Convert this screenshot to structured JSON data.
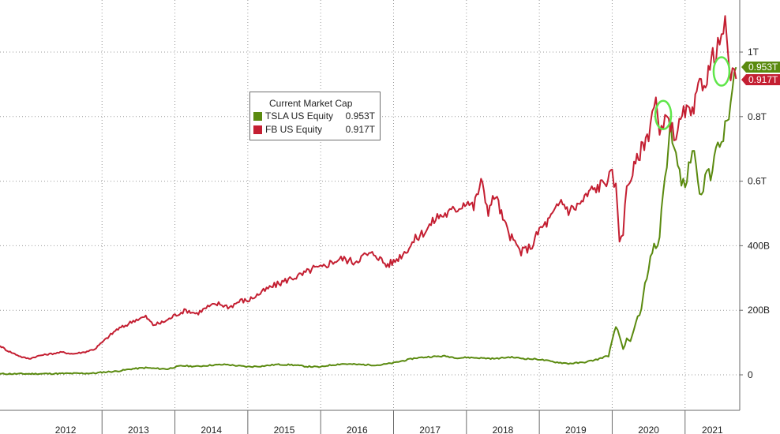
{
  "chart_data": {
    "type": "line",
    "title": "",
    "xlabel": "",
    "ylabel": "",
    "x_tick_labels": [
      "2012",
      "2013",
      "2014",
      "2015",
      "2016",
      "2017",
      "2018",
      "2019",
      "2020",
      "2021"
    ],
    "y_tick_labels": [
      "0",
      "200B",
      "400B",
      "0.6T",
      "0.8T",
      "1T"
    ],
    "y_tick_values": [
      0,
      200,
      400,
      600,
      800,
      1000
    ],
    "ylim": [
      -100,
      1160
    ],
    "xlim": [
      2011.6,
      2021.75
    ],
    "grid": true,
    "y_axis_side": "right",
    "legend": {
      "title": "Current Market Cap",
      "placement": "upper-center",
      "entries": [
        {
          "name": "TSLA US Equity",
          "value": "0.953T",
          "color": "#5a8a0f"
        },
        {
          "name": "FB US Equity",
          "value": "0.917T",
          "color": "#c41f32"
        }
      ]
    },
    "last_value_tags": [
      {
        "series": "TSLA US Equity",
        "text": "0.953T",
        "value": 953,
        "color": "#5a8a0f"
      },
      {
        "series": "FB US Equity",
        "text": "0.917T",
        "value": 917,
        "color": "#c41f32"
      }
    ],
    "highlight_circles": [
      {
        "x": 2020.7,
        "y": 805
      },
      {
        "x": 2021.5,
        "y": 940
      }
    ],
    "series": [
      {
        "name": "TSLA US Equity",
        "color": "#5a8a0f",
        "unit": "B",
        "x": [
          2011.6,
          2012.0,
          2012.5,
          2012.9,
          2013.0,
          2013.2,
          2013.4,
          2013.6,
          2013.7,
          2013.9,
          2014.0,
          2014.1,
          2014.3,
          2014.5,
          2014.7,
          2014.9,
          2015.0,
          2015.2,
          2015.4,
          2015.6,
          2015.8,
          2016.0,
          2016.1,
          2016.3,
          2016.5,
          2016.8,
          2017.0,
          2017.3,
          2017.5,
          2017.7,
          2017.9,
          2018.0,
          2018.2,
          2018.4,
          2018.6,
          2018.8,
          2019.0,
          2019.2,
          2019.4,
          2019.6,
          2019.8,
          2019.95,
          2020.05,
          2020.1,
          2020.15,
          2020.2,
          2020.25,
          2020.3,
          2020.35,
          2020.4,
          2020.45,
          2020.5,
          2020.55,
          2020.6,
          2020.65,
          2020.7,
          2020.75,
          2020.8,
          2020.85,
          2020.9,
          2020.95,
          2021.0,
          2021.05,
          2021.1,
          2021.15,
          2021.2,
          2021.25,
          2021.3,
          2021.35,
          2021.4,
          2021.45,
          2021.5,
          2021.55,
          2021.6,
          2021.65,
          2021.7
        ],
        "values": [
          3,
          3,
          4,
          5,
          8,
          11,
          18,
          22,
          20,
          18,
          24,
          28,
          26,
          30,
          32,
          27,
          25,
          27,
          32,
          31,
          26,
          24,
          29,
          34,
          32,
          30,
          37,
          52,
          56,
          58,
          52,
          54,
          52,
          50,
          55,
          50,
          48,
          40,
          35,
          38,
          48,
          60,
          150,
          120,
          80,
          110,
          100,
          140,
          180,
          200,
          280,
          320,
          390,
          400,
          420,
          580,
          650,
          780,
          700,
          650,
          600,
          580,
          640,
          700,
          660,
          580,
          560,
          640,
          620,
          680,
          700,
          720,
          760,
          800,
          880,
          953
        ]
      },
      {
        "name": "FB US Equity",
        "color": "#c41f32",
        "unit": "B",
        "x": [
          2011.6,
          2011.7,
          2011.8,
          2011.9,
          2012.0,
          2012.15,
          2012.3,
          2012.45,
          2012.6,
          2012.75,
          2012.9,
          2013.0,
          2013.1,
          2013.2,
          2013.3,
          2013.45,
          2013.6,
          2013.7,
          2013.8,
          2013.9,
          2014.0,
          2014.15,
          2014.3,
          2014.45,
          2014.6,
          2014.75,
          2014.9,
          2015.0,
          2015.15,
          2015.3,
          2015.45,
          2015.6,
          2015.75,
          2015.9,
          2016.0,
          2016.15,
          2016.3,
          2016.45,
          2016.6,
          2016.75,
          2016.9,
          2017.0,
          2017.15,
          2017.3,
          2017.45,
          2017.6,
          2017.75,
          2017.9,
          2018.0,
          2018.1,
          2018.2,
          2018.3,
          2018.4,
          2018.5,
          2018.6,
          2018.75,
          2018.9,
          2019.0,
          2019.1,
          2019.2,
          2019.3,
          2019.4,
          2019.5,
          2019.6,
          2019.7,
          2019.8,
          2019.9,
          2020.0,
          2020.05,
          2020.1,
          2020.15,
          2020.2,
          2020.3,
          2020.4,
          2020.5,
          2020.55,
          2020.6,
          2020.65,
          2020.7,
          2020.75,
          2020.8,
          2020.85,
          2020.9,
          2021.0,
          2021.1,
          2021.2,
          2021.3,
          2021.4,
          2021.45,
          2021.5,
          2021.55,
          2021.6,
          2021.65,
          2021.7
        ],
        "values": [
          90,
          75,
          65,
          55,
          50,
          60,
          65,
          70,
          65,
          70,
          80,
          100,
          120,
          140,
          150,
          170,
          180,
          155,
          160,
          170,
          185,
          200,
          190,
          210,
          220,
          210,
          230,
          230,
          250,
          270,
          285,
          300,
          310,
          330,
          330,
          350,
          360,
          350,
          370,
          375,
          340,
          350,
          380,
          420,
          450,
          490,
          500,
          520,
          540,
          520,
          600,
          510,
          560,
          480,
          430,
          380,
          400,
          450,
          470,
          500,
          540,
          510,
          520,
          540,
          570,
          580,
          600,
          620,
          580,
          420,
          450,
          580,
          640,
          700,
          750,
          820,
          850,
          740,
          760,
          800,
          780,
          740,
          760,
          820,
          800,
          900,
          920,
          1000,
          1010,
          1050,
          1080,
          960,
          920,
          917
        ]
      }
    ]
  }
}
